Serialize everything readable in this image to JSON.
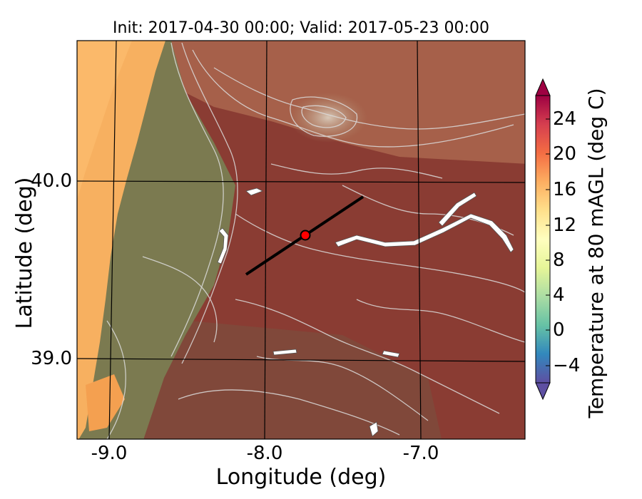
{
  "title": "Init: 2017-04-30 00:00; Valid: 2017-05-23 00:00",
  "x_axis": {
    "label": "Longitude (deg)",
    "ticks": [
      "-9.0",
      "-8.0",
      "-7.0"
    ]
  },
  "y_axis": {
    "label": "Latitude (deg)",
    "ticks": [
      "40.0",
      "39.0"
    ]
  },
  "colorbar": {
    "label": "Temperature at 80 mAGL (deg C)",
    "ticks": [
      "24",
      "20",
      "16",
      "12",
      "8",
      "4",
      "0",
      "−4"
    ],
    "range": [
      -6,
      28
    ],
    "colormap": "Spectral_r",
    "extend": "both"
  },
  "map": {
    "lon_range": [
      -9.25,
      -6.35
    ],
    "lat_range": [
      38.55,
      40.8
    ],
    "gridlines": "lon/lat graticule at 1.0 deg",
    "overlay": "terrain elevation contours (white/light gray)",
    "transect": {
      "start": [
        -8.12,
        39.5
      ],
      "end": [
        -7.36,
        39.92
      ],
      "color": "#000000"
    },
    "site_marker": {
      "lon": -7.75,
      "lat": 39.69,
      "fill": "#ff0000",
      "stroke": "#000000"
    },
    "colors": {
      "coastal_warm": "#f7b060",
      "hills_olive": "#7b7a50",
      "plains_dark_red": "#8a3a32"
    }
  }
}
